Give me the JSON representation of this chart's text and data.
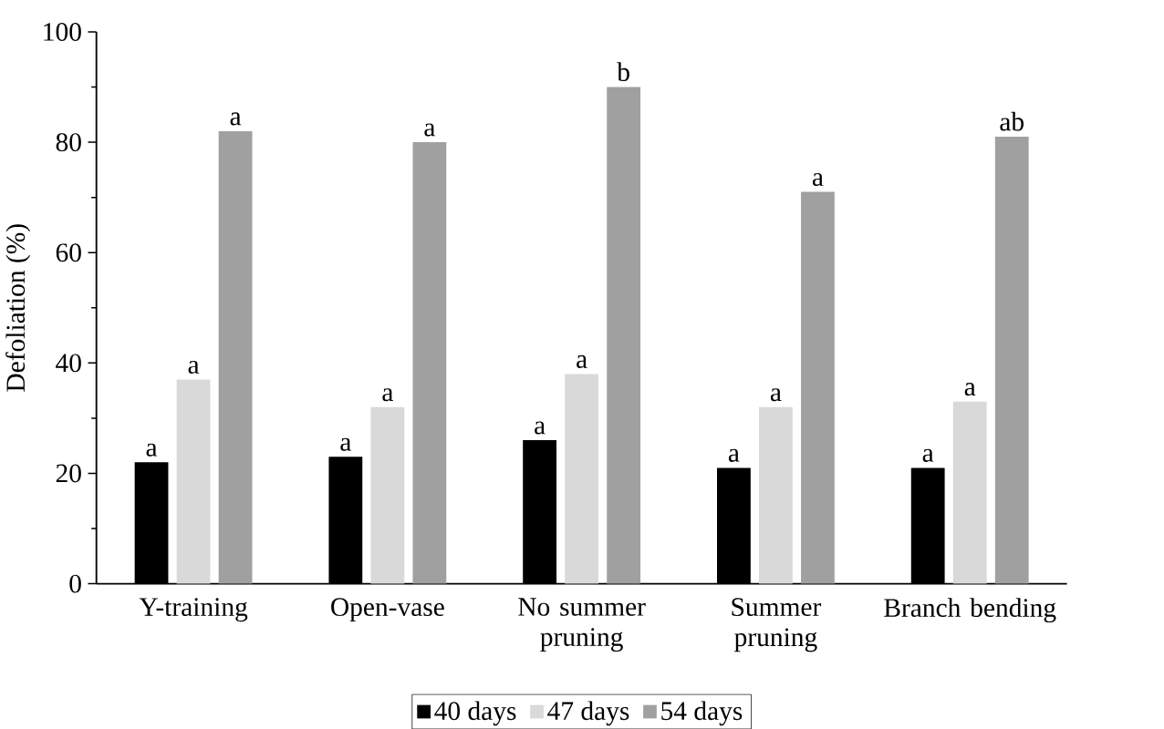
{
  "chart_data": {
    "type": "bar",
    "ylabel": "Defoliation (%)",
    "categories": [
      "Y-training",
      "Open-vase",
      "No summer pruning",
      "Summer pruning",
      "Branch bending"
    ],
    "series": [
      {
        "name": "40 days",
        "color": "#000000",
        "values": [
          22,
          23,
          26,
          21,
          21
        ],
        "value_labels": [
          "a",
          "a",
          "a",
          "a",
          "a"
        ]
      },
      {
        "name": "47 days",
        "color": "#d9d9d9",
        "values": [
          37,
          32,
          38,
          32,
          33
        ],
        "value_labels": [
          "a",
          "a",
          "a",
          "a",
          "a"
        ]
      },
      {
        "name": "54 days",
        "color": "#a0a0a0",
        "values": [
          82,
          80,
          90,
          71,
          81
        ],
        "value_labels": [
          "a",
          "a",
          "b",
          "a",
          "ab"
        ]
      }
    ],
    "ylim": [
      0,
      100
    ],
    "yticks": [
      0,
      20,
      40,
      60,
      80,
      100
    ],
    "legend": "bottom"
  }
}
